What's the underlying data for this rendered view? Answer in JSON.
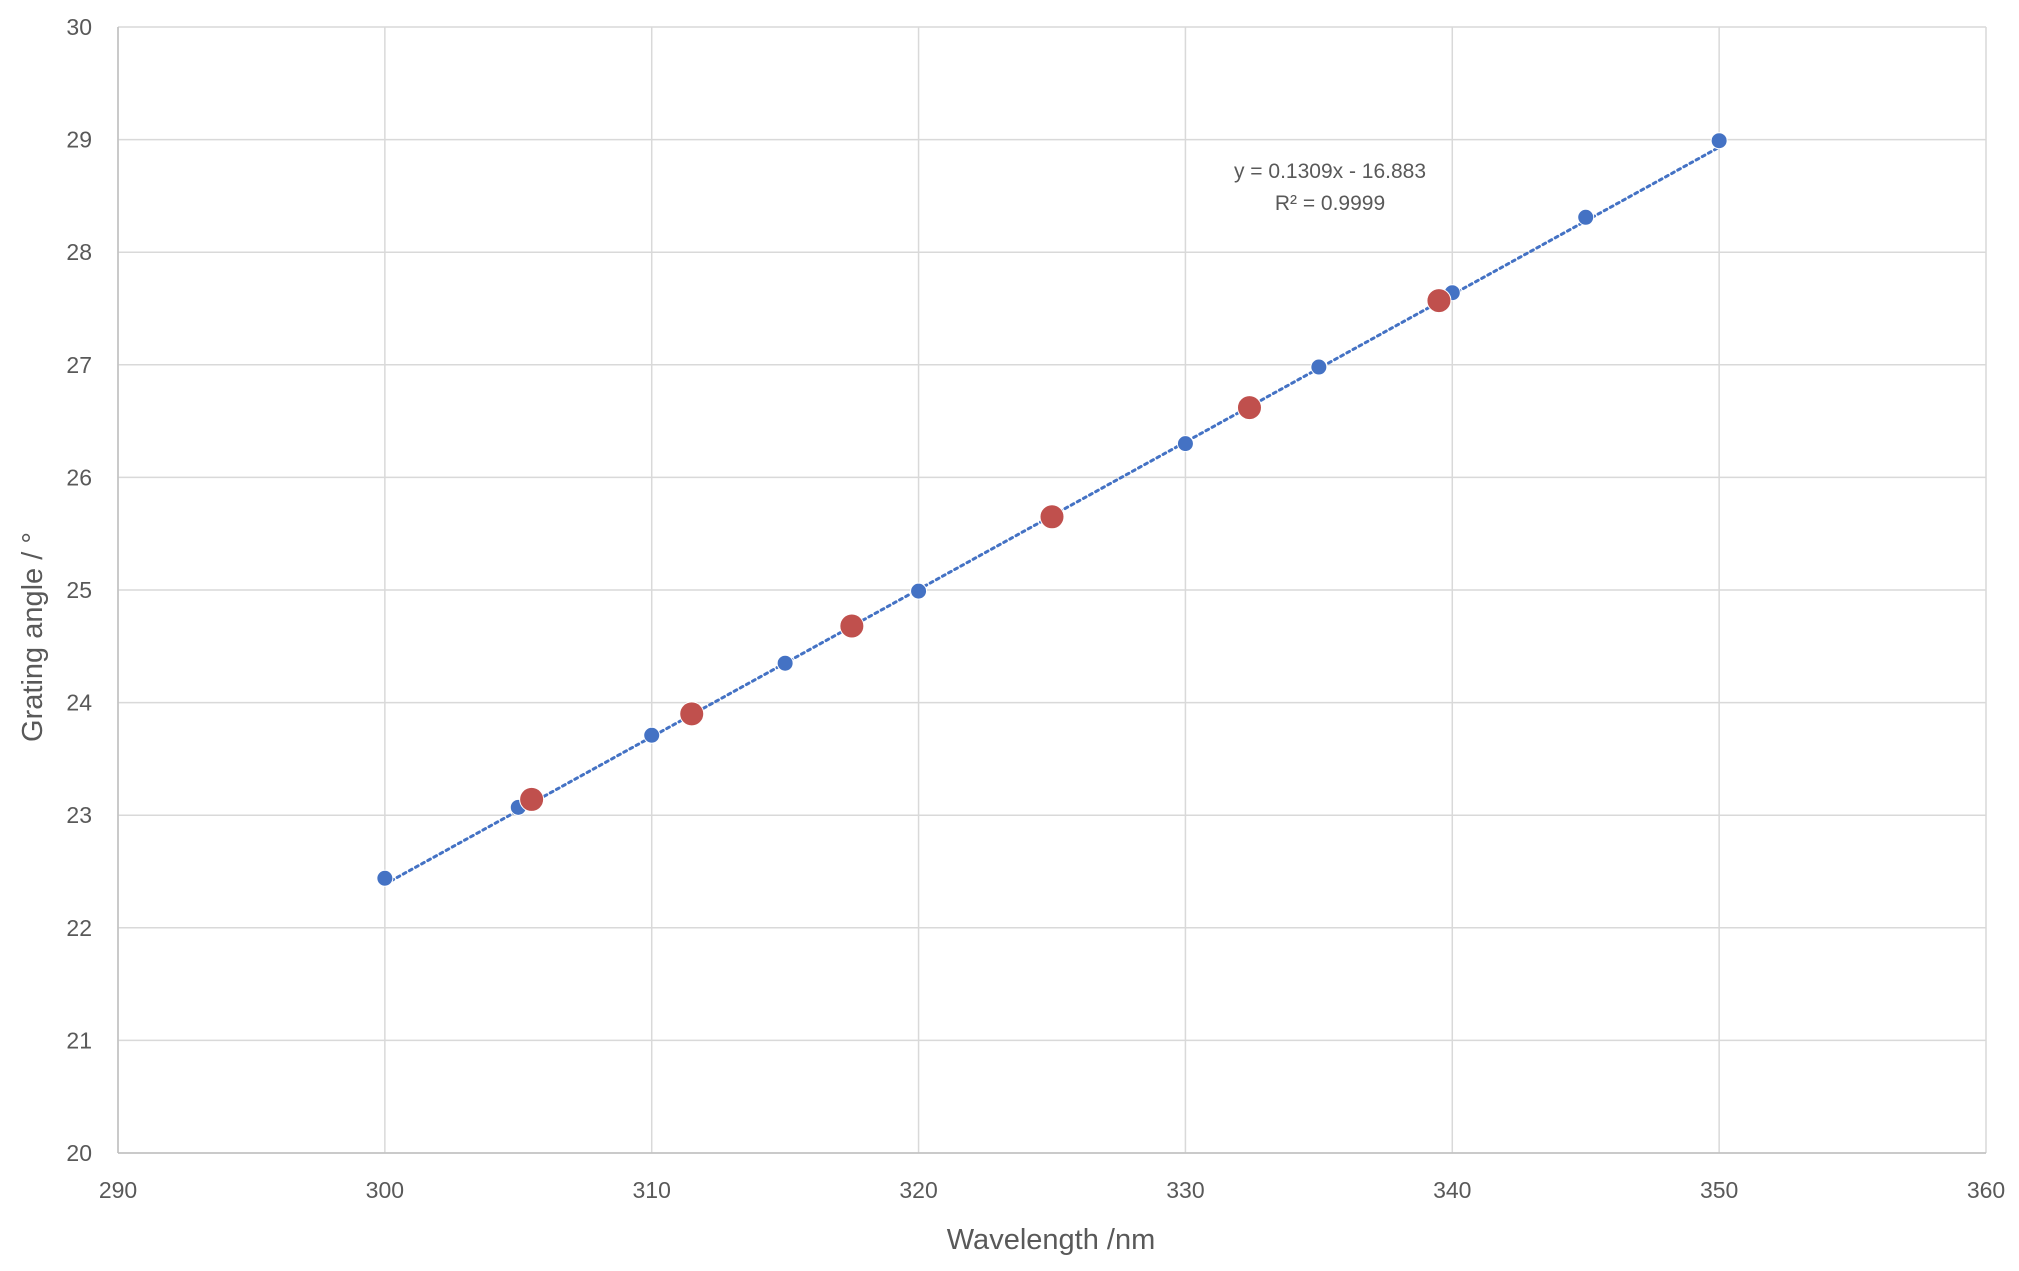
{
  "chart_data": {
    "type": "scatter",
    "title": "",
    "xlabel": "Wavelength /nm",
    "ylabel": "Grating angle / °",
    "xlim": [
      290,
      360
    ],
    "ylim": [
      20,
      30
    ],
    "x_ticks": [
      290,
      300,
      310,
      320,
      330,
      340,
      350,
      360
    ],
    "y_ticks": [
      20,
      21,
      22,
      23,
      24,
      25,
      26,
      27,
      28,
      29,
      30
    ],
    "grid": true,
    "legend": "none",
    "series": [
      {
        "color": "#4472c4",
        "marker": "small-circle",
        "x": [
          300,
          305,
          310,
          315,
          320,
          330,
          335,
          340,
          345,
          350
        ],
        "y": [
          22.44,
          23.07,
          23.71,
          24.35,
          24.99,
          26.3,
          26.98,
          27.64,
          28.31,
          28.99
        ]
      },
      {
        "color": "#c0504d",
        "marker": "large-circle",
        "x": [
          305.5,
          311.5,
          317.5,
          325,
          332.4,
          339.5
        ],
        "y": [
          23.14,
          23.9,
          24.68,
          25.65,
          26.62,
          27.57
        ]
      }
    ],
    "trendline": {
      "type": "linear",
      "style": "dotted",
      "color": "#4472c4",
      "slope": 0.1309,
      "intercept": -16.883,
      "x_range": [
        300,
        350
      ],
      "equation_label": "y = 0.1309x - 16.883",
      "r2_label": "R² = 0.9999"
    }
  }
}
